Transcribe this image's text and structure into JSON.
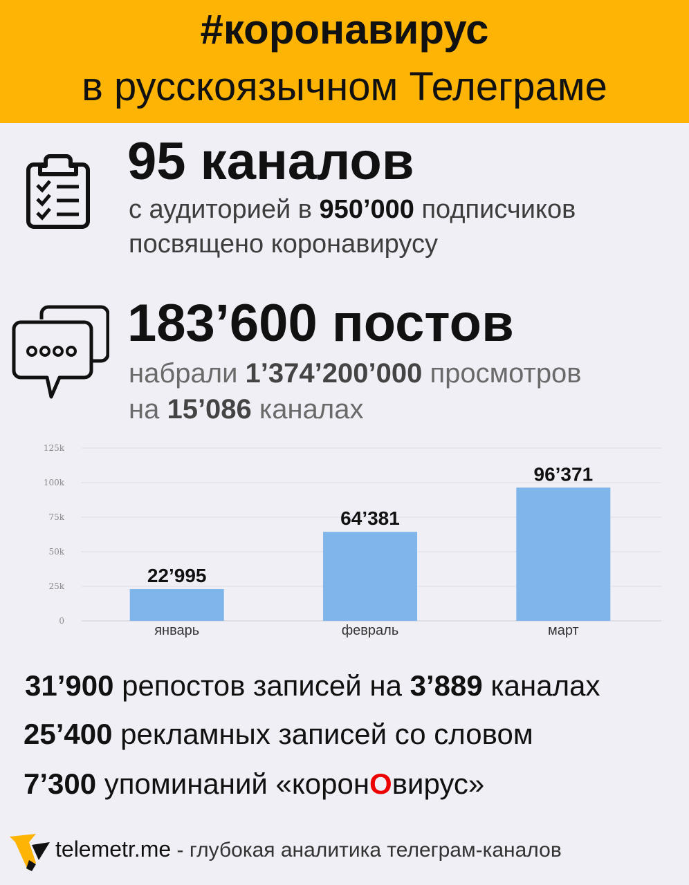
{
  "header": {
    "title": "#коронавирус",
    "subtitle": "в русскоязычном Телеграме"
  },
  "block1": {
    "icon": "clipboard-checklist-icon",
    "headline": "95 каналов",
    "line1_pre": "с аудиторией в ",
    "line1_bold": "950’000",
    "line1_post": " подписчиков",
    "line2": "посвящено коронавирусу"
  },
  "block2": {
    "icon": "chat-bubbles-icon",
    "headline": "183’600 постов",
    "line1_pre": "набрали ",
    "line1_bold": "1’374’200’000",
    "line1_post": " просмотров",
    "line2_pre": "на ",
    "line2_bold": "15’086",
    "line2_post": " каналах"
  },
  "chart_data": {
    "type": "bar",
    "categories": [
      "январь",
      "февраль",
      "март"
    ],
    "values": [
      22995,
      64381,
      96371
    ],
    "value_labels": [
      "22’995",
      "64’381",
      "96’371"
    ],
    "yticks": [
      "0",
      "25k",
      "50k",
      "75k",
      "100k",
      "125k"
    ],
    "ylim": [
      0,
      125000
    ],
    "grid": true,
    "bar_color": "#7eb5ea"
  },
  "stats": [
    {
      "bold1": "31’900",
      "text1": " репостов записей на ",
      "bold2": "3’889",
      "text2": " каналах"
    },
    {
      "bold1": "25’400",
      "text1": " рекламных записей со словом",
      "bold2": "",
      "text2": ""
    },
    {
      "bold1": "7’300",
      "text1": " упоминаний «корон",
      "red": "О",
      "text2": "вирус»"
    }
  ],
  "footer": {
    "logo": "telemetr-logo-icon",
    "brand": "telemetr.me",
    "tagline": " - глубокая аналитика телеграм-каналов"
  },
  "colors": {
    "header_bg": "#fdb405",
    "page_bg": "#efeff5",
    "accent_red": "#e00000"
  }
}
